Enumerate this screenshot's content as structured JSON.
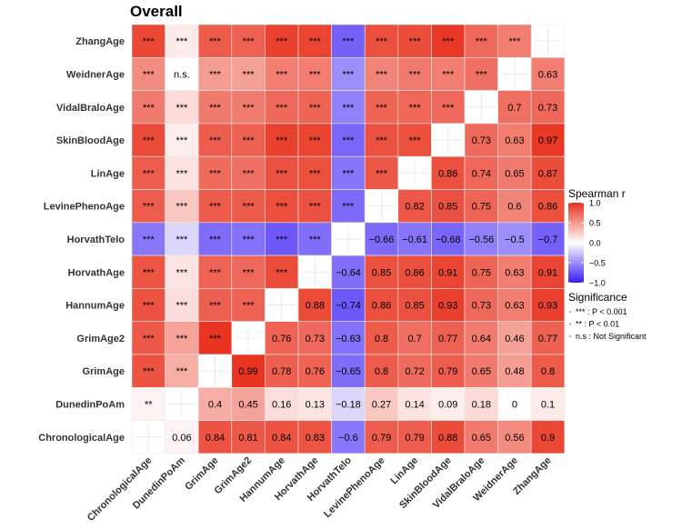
{
  "chart_data": {
    "type": "heatmap",
    "title": "Overall",
    "variables": [
      "ChronologicalAge",
      "DunedinPoAm",
      "GrimAge",
      "GrimAge2",
      "HannumAge",
      "HorvathAge",
      "HorvathTelo",
      "LevinePhenoAge",
      "LinAge",
      "SkinBloodAge",
      "VidalBraloAge",
      "WeidnerAge",
      "ZhangAge"
    ],
    "matrix": [
      [
        null,
        0.06,
        0.84,
        0.81,
        0.84,
        0.83,
        -0.6,
        0.79,
        0.79,
        0.88,
        0.65,
        0.56,
        0.9
      ],
      [
        0.06,
        null,
        0.4,
        0.45,
        0.16,
        0.13,
        -0.18,
        0.27,
        0.14,
        0.09,
        0.18,
        0,
        0.1
      ],
      [
        0.84,
        0.4,
        null,
        0.99,
        0.78,
        0.76,
        -0.65,
        0.8,
        0.72,
        0.79,
        0.65,
        0.48,
        0.8
      ],
      [
        0.81,
        0.45,
        0.99,
        null,
        0.76,
        0.73,
        -0.63,
        0.8,
        0.7,
        0.77,
        0.64,
        0.46,
        0.77
      ],
      [
        0.84,
        0.16,
        0.78,
        0.76,
        null,
        0.88,
        -0.74,
        0.86,
        0.85,
        0.93,
        0.73,
        0.63,
        0.93
      ],
      [
        0.83,
        0.13,
        0.76,
        0.73,
        0.88,
        null,
        -0.64,
        0.85,
        0.86,
        0.91,
        0.75,
        0.63,
        0.91
      ],
      [
        -0.6,
        -0.18,
        -0.65,
        -0.63,
        -0.74,
        -0.64,
        null,
        -0.66,
        -0.61,
        -0.68,
        -0.56,
        -0.5,
        -0.7
      ],
      [
        0.79,
        0.27,
        0.8,
        0.8,
        0.86,
        0.85,
        -0.66,
        null,
        0.82,
        0.85,
        0.75,
        0.6,
        0.86
      ],
      [
        0.79,
        0.14,
        0.72,
        0.7,
        0.85,
        0.86,
        -0.61,
        0.82,
        null,
        0.86,
        0.74,
        0.65,
        0.87
      ],
      [
        0.88,
        0.09,
        0.79,
        0.77,
        0.93,
        0.91,
        -0.68,
        0.85,
        0.86,
        null,
        0.73,
        0.63,
        0.97
      ],
      [
        0.65,
        0.18,
        0.65,
        0.64,
        0.73,
        0.75,
        -0.56,
        0.75,
        0.74,
        0.73,
        null,
        0.7,
        0.73
      ],
      [
        0.56,
        0,
        0.48,
        0.46,
        0.63,
        0.63,
        -0.5,
        0.6,
        0.65,
        0.63,
        0.7,
        null,
        0.63
      ],
      [
        0.9,
        0.1,
        0.8,
        0.77,
        0.93,
        0.91,
        -0.7,
        0.86,
        0.87,
        0.97,
        0.73,
        0.63,
        null
      ]
    ],
    "upper_triangle_labels": {
      "ChronologicalAge": [
        "**",
        "***",
        "***",
        "***",
        "***",
        "***",
        "***",
        "***",
        "***",
        "***",
        "***",
        "***"
      ],
      "DunedinPoAm": [
        "***",
        "***",
        "***",
        "***",
        "***",
        "***",
        "***",
        "***",
        "***",
        "n.s.",
        "***"
      ],
      "GrimAge": [
        "***",
        "***",
        "***",
        "***",
        "***",
        "***",
        "***",
        "***",
        "***",
        "***"
      ],
      "GrimAge2": [
        "***",
        "***",
        "***",
        "***",
        "***",
        "***",
        "***",
        "***",
        "***"
      ],
      "HannumAge": [
        "***",
        "***",
        "***",
        "***",
        "***",
        "***",
        "***",
        "***"
      ],
      "HorvathAge": [
        "***",
        "***",
        "***",
        "***",
        "***",
        "***",
        "***"
      ],
      "HorvathTelo": [
        "***",
        "***",
        "***",
        "***",
        "***",
        "***"
      ],
      "LevinePhenoAge": [
        "***",
        "***",
        "***",
        "***",
        "***"
      ],
      "LinAge": [
        "***",
        "***",
        "***",
        "***"
      ],
      "SkinBloodAge": [
        "***",
        "***",
        "***"
      ],
      "VidalBraloAge": [
        "***",
        "***"
      ],
      "WeidnerAge": [
        "***"
      ]
    },
    "color_scale": {
      "low": "#3a1df5",
      "mid": "#ffffff",
      "high": "#e8321e",
      "range": [
        -1,
        1
      ]
    },
    "legend_color": {
      "title": "Spearman r",
      "ticks": [
        1.0,
        0.5,
        0.0,
        -0.5,
        -1.0
      ],
      "tick_labels": [
        "1.0",
        "0.5",
        "0.0",
        "−0.5",
        "−1.0"
      ]
    },
    "legend_significance": {
      "title": "Significance",
      "items": [
        "*** : P < 0.001",
        "** : P < 0.01",
        "n.s : Not Significant"
      ]
    },
    "grid": false,
    "legend_position": "right"
  }
}
